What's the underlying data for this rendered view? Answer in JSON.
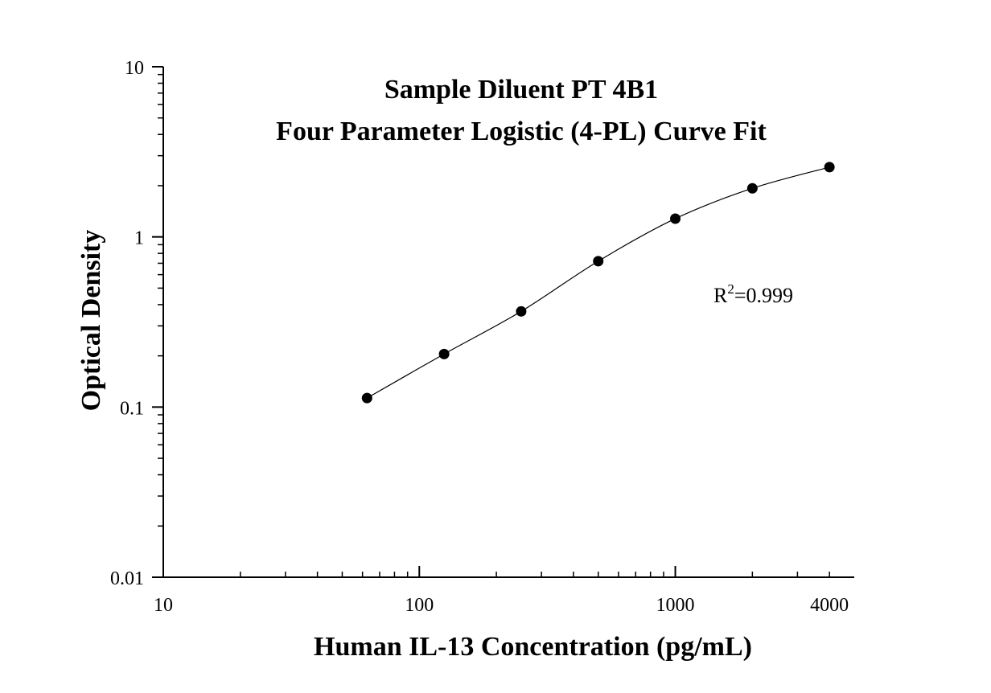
{
  "chart_data": {
    "type": "scatter",
    "title": [
      "Sample Diluent PT 4B1",
      "Four Parameter Logistic (4-PL) Curve Fit"
    ],
    "xlabel": "Human IL-13 Concentration (pg/mL)",
    "ylabel": "Optical Density",
    "xscale": "log",
    "yscale": "log",
    "xlim": [
      10,
      5000
    ],
    "ylim": [
      0.01,
      10
    ],
    "x_tick_labels": [
      "10",
      "100",
      "1000",
      "4000"
    ],
    "x_tick_values": [
      10,
      100,
      1000,
      4000
    ],
    "y_tick_labels": [
      "0.01",
      "0.1",
      "1",
      "10"
    ],
    "y_tick_values": [
      0.01,
      0.1,
      1,
      10
    ],
    "grid": false,
    "series": [
      {
        "x": [
          62.5,
          125,
          250,
          500,
          1000,
          2000,
          4000
        ],
        "y": [
          0.113,
          0.205,
          0.365,
          0.72,
          1.28,
          1.93,
          2.57
        ],
        "color": "#000000",
        "marker": "circle",
        "fit": "4-PL"
      }
    ],
    "annotation": {
      "base": "R",
      "sup": "2",
      "rest": "=0.999"
    }
  }
}
